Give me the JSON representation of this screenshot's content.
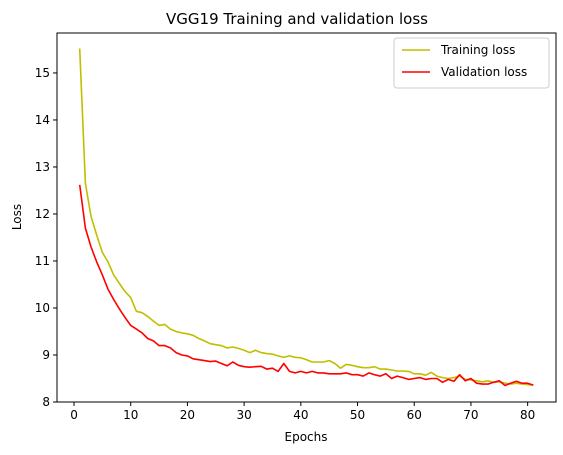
{
  "chart_data": {
    "type": "line",
    "title": "VGG19 Training and validation loss",
    "xlabel": "Epochs",
    "ylabel": "Loss",
    "xlim": [
      -3,
      85
    ],
    "ylim": [
      8.0,
      15.85
    ],
    "xticks": [
      0,
      10,
      20,
      30,
      40,
      50,
      60,
      70,
      80
    ],
    "yticks": [
      8,
      9,
      10,
      11,
      12,
      13,
      14,
      15
    ],
    "grid": false,
    "legend_position": "top-right",
    "series": [
      {
        "name": "Training loss",
        "color": "#bfbf00",
        "x": [
          1,
          2,
          3,
          4,
          5,
          6,
          7,
          8,
          9,
          10,
          11,
          12,
          13,
          14,
          15,
          16,
          17,
          18,
          19,
          20,
          21,
          22,
          23,
          24,
          25,
          26,
          27,
          28,
          29,
          30,
          31,
          32,
          33,
          34,
          35,
          36,
          37,
          38,
          39,
          40,
          41,
          42,
          43,
          44,
          45,
          46,
          47,
          48,
          49,
          50,
          51,
          52,
          53,
          54,
          55,
          56,
          57,
          58,
          59,
          60,
          61,
          62,
          63,
          64,
          65,
          66,
          67,
          68,
          69,
          70,
          71,
          72,
          73,
          74,
          75,
          76,
          77,
          78,
          79,
          80,
          81
        ],
        "values": [
          15.52,
          12.65,
          11.95,
          11.55,
          11.18,
          10.98,
          10.7,
          10.52,
          10.35,
          10.22,
          9.93,
          9.9,
          9.82,
          9.72,
          9.63,
          9.65,
          9.55,
          9.5,
          9.47,
          9.45,
          9.42,
          9.35,
          9.3,
          9.24,
          9.22,
          9.2,
          9.15,
          9.17,
          9.14,
          9.1,
          9.05,
          9.1,
          9.05,
          9.03,
          9.02,
          8.98,
          8.95,
          8.98,
          8.95,
          8.94,
          8.9,
          8.85,
          8.85,
          8.85,
          8.88,
          8.82,
          8.72,
          8.8,
          8.78,
          8.75,
          8.73,
          8.73,
          8.75,
          8.7,
          8.7,
          8.68,
          8.66,
          8.66,
          8.65,
          8.6,
          8.6,
          8.57,
          8.63,
          8.55,
          8.52,
          8.5,
          8.52,
          8.55,
          8.48,
          8.47,
          8.45,
          8.43,
          8.45,
          8.42,
          8.43,
          8.4,
          8.38,
          8.4,
          8.38,
          8.37,
          8.36
        ]
      },
      {
        "name": "Validation loss",
        "color": "#ff0000",
        "x": [
          1,
          2,
          3,
          4,
          5,
          6,
          7,
          8,
          9,
          10,
          11,
          12,
          13,
          14,
          15,
          16,
          17,
          18,
          19,
          20,
          21,
          22,
          23,
          24,
          25,
          26,
          27,
          28,
          29,
          30,
          31,
          32,
          33,
          34,
          35,
          36,
          37,
          38,
          39,
          40,
          41,
          42,
          43,
          44,
          45,
          46,
          47,
          48,
          49,
          50,
          51,
          52,
          53,
          54,
          55,
          56,
          57,
          58,
          59,
          60,
          61,
          62,
          63,
          64,
          65,
          66,
          67,
          68,
          69,
          70,
          71,
          72,
          73,
          74,
          75,
          76,
          77,
          78,
          79,
          80,
          81
        ],
        "values": [
          12.62,
          11.7,
          11.3,
          10.98,
          10.7,
          10.4,
          10.18,
          9.98,
          9.8,
          9.63,
          9.55,
          9.47,
          9.35,
          9.3,
          9.2,
          9.2,
          9.15,
          9.05,
          9.0,
          8.98,
          8.92,
          8.9,
          8.88,
          8.86,
          8.87,
          8.82,
          8.77,
          8.85,
          8.78,
          8.75,
          8.74,
          8.75,
          8.76,
          8.7,
          8.72,
          8.65,
          8.82,
          8.65,
          8.62,
          8.65,
          8.62,
          8.65,
          8.62,
          8.62,
          8.6,
          8.6,
          8.6,
          8.62,
          8.58,
          8.58,
          8.55,
          8.62,
          8.58,
          8.55,
          8.6,
          8.5,
          8.55,
          8.52,
          8.48,
          8.5,
          8.52,
          8.48,
          8.5,
          8.5,
          8.42,
          8.48,
          8.44,
          8.58,
          8.45,
          8.5,
          8.4,
          8.38,
          8.38,
          8.42,
          8.45,
          8.35,
          8.4,
          8.44,
          8.4,
          8.4,
          8.36
        ]
      }
    ]
  }
}
